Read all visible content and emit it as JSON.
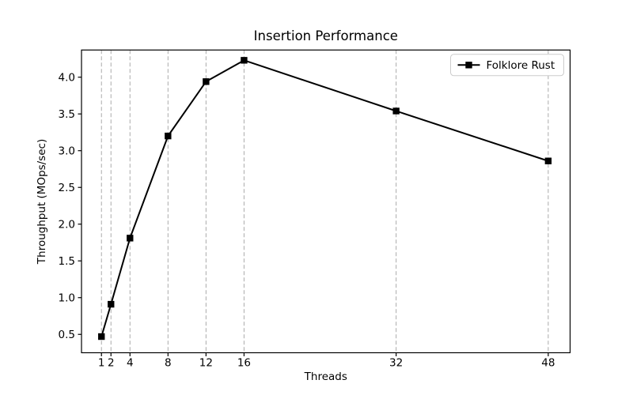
{
  "chart_data": {
    "type": "line",
    "title": "Insertion Performance",
    "xlabel": "Threads",
    "ylabel": "Throughput (MOps/sec)",
    "x": [
      1,
      2,
      4,
      8,
      12,
      16,
      32,
      48
    ],
    "series": [
      {
        "name": "Folklore Rust",
        "values": [
          0.47,
          0.91,
          1.81,
          3.2,
          3.94,
          4.23,
          3.54,
          2.86
        ],
        "color": "#000000",
        "marker": "square",
        "linestyle": "solid"
      }
    ],
    "x_ticks": [
      1,
      2,
      4,
      8,
      12,
      16,
      32,
      48
    ],
    "x_tick_labels": [
      "1",
      "2",
      "4",
      "8",
      "12",
      "16",
      "32",
      "48"
    ],
    "y_ticks": [
      0.5,
      1.0,
      1.5,
      2.0,
      2.5,
      3.0,
      3.5,
      4.0
    ],
    "y_tick_labels": [
      "0.5",
      "1.0",
      "1.5",
      "2.0",
      "2.5",
      "3.0",
      "3.5",
      "4.0"
    ],
    "xlim": [
      -1.1,
      50.3
    ],
    "ylim": [
      0.25,
      4.37
    ],
    "grid": "vertical-only",
    "grid_style": "dashed",
    "grid_color": "#aaaaaa",
    "axis_color": "#000000",
    "background": "#ffffff",
    "legend_position": "upper-right",
    "legend_entries": [
      "Folklore Rust"
    ],
    "legend_border_color": "#cccccc"
  }
}
